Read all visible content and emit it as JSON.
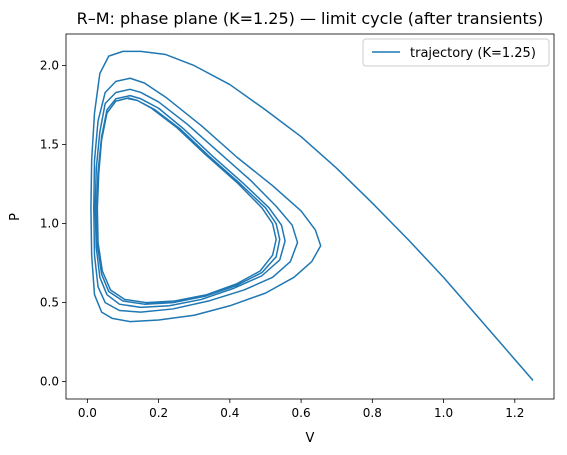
{
  "chart_data": {
    "type": "line",
    "title": "R–M: phase plane (K=1.25) — limit cycle (after transients)",
    "xlabel": "V",
    "ylabel": "P",
    "xlim": [
      -0.06,
      1.31
    ],
    "ylim": [
      -0.11,
      2.2
    ],
    "xticks": [
      0.0,
      0.2,
      0.4,
      0.6,
      0.8,
      1.0,
      1.2
    ],
    "xtick_labels": [
      "0.0",
      "0.2",
      "0.4",
      "0.6",
      "0.8",
      "1.0",
      "1.2"
    ],
    "yticks": [
      0.0,
      0.5,
      1.0,
      1.5,
      2.0
    ],
    "ytick_labels": [
      "0.0",
      "0.5",
      "1.0",
      "1.5",
      "2.0"
    ],
    "grid": false,
    "legend": {
      "position": "top-right",
      "entries": [
        "trajectory (K=1.25)"
      ]
    },
    "series": [
      {
        "name": "trajectory (K=1.25)",
        "color": "#1f77b4",
        "points": [
          [
            1.25,
            0.01
          ],
          [
            1.2,
            0.14
          ],
          [
            1.1,
            0.4
          ],
          [
            1.0,
            0.66
          ],
          [
            0.9,
            0.9
          ],
          [
            0.8,
            1.13
          ],
          [
            0.7,
            1.35
          ],
          [
            0.6,
            1.55
          ],
          [
            0.5,
            1.72
          ],
          [
            0.4,
            1.88
          ],
          [
            0.3,
            2.0
          ],
          [
            0.22,
            2.07
          ],
          [
            0.15,
            2.09
          ],
          [
            0.1,
            2.09
          ],
          [
            0.06,
            2.06
          ],
          [
            0.035,
            1.95
          ],
          [
            0.02,
            1.7
          ],
          [
            0.012,
            1.4
          ],
          [
            0.01,
            1.1
          ],
          [
            0.012,
            0.8
          ],
          [
            0.02,
            0.55
          ],
          [
            0.04,
            0.44
          ],
          [
            0.07,
            0.4
          ],
          [
            0.12,
            0.38
          ],
          [
            0.2,
            0.39
          ],
          [
            0.3,
            0.42
          ],
          [
            0.4,
            0.48
          ],
          [
            0.5,
            0.56
          ],
          [
            0.58,
            0.66
          ],
          [
            0.63,
            0.76
          ],
          [
            0.655,
            0.86
          ],
          [
            0.64,
            0.96
          ],
          [
            0.6,
            1.08
          ],
          [
            0.52,
            1.24
          ],
          [
            0.42,
            1.42
          ],
          [
            0.32,
            1.62
          ],
          [
            0.22,
            1.8
          ],
          [
            0.16,
            1.89
          ],
          [
            0.12,
            1.92
          ],
          [
            0.08,
            1.9
          ],
          [
            0.05,
            1.83
          ],
          [
            0.03,
            1.65
          ],
          [
            0.02,
            1.4
          ],
          [
            0.018,
            1.1
          ],
          [
            0.02,
            0.8
          ],
          [
            0.03,
            0.6
          ],
          [
            0.05,
            0.5
          ],
          [
            0.09,
            0.45
          ],
          [
            0.15,
            0.44
          ],
          [
            0.24,
            0.46
          ],
          [
            0.34,
            0.51
          ],
          [
            0.44,
            0.58
          ],
          [
            0.52,
            0.66
          ],
          [
            0.57,
            0.76
          ],
          [
            0.59,
            0.88
          ],
          [
            0.575,
            0.99
          ],
          [
            0.53,
            1.11
          ],
          [
            0.46,
            1.27
          ],
          [
            0.37,
            1.45
          ],
          [
            0.28,
            1.63
          ],
          [
            0.2,
            1.77
          ],
          [
            0.15,
            1.83
          ],
          [
            0.12,
            1.85
          ],
          [
            0.08,
            1.83
          ],
          [
            0.05,
            1.76
          ],
          [
            0.035,
            1.58
          ],
          [
            0.025,
            1.35
          ],
          [
            0.022,
            1.1
          ],
          [
            0.025,
            0.85
          ],
          [
            0.035,
            0.66
          ],
          [
            0.055,
            0.55
          ],
          [
            0.09,
            0.49
          ],
          [
            0.15,
            0.47
          ],
          [
            0.23,
            0.48
          ],
          [
            0.32,
            0.52
          ],
          [
            0.41,
            0.59
          ],
          [
            0.49,
            0.67
          ],
          [
            0.54,
            0.77
          ],
          [
            0.555,
            0.89
          ],
          [
            0.545,
            0.99
          ],
          [
            0.51,
            1.1
          ],
          [
            0.44,
            1.25
          ],
          [
            0.35,
            1.43
          ],
          [
            0.27,
            1.6
          ],
          [
            0.2,
            1.73
          ],
          [
            0.15,
            1.79
          ],
          [
            0.12,
            1.81
          ],
          [
            0.08,
            1.79
          ],
          [
            0.055,
            1.72
          ],
          [
            0.04,
            1.55
          ],
          [
            0.03,
            1.33
          ],
          [
            0.026,
            1.1
          ],
          [
            0.028,
            0.87
          ],
          [
            0.04,
            0.68
          ],
          [
            0.06,
            0.57
          ],
          [
            0.1,
            0.51
          ],
          [
            0.16,
            0.49
          ],
          [
            0.24,
            0.5
          ],
          [
            0.33,
            0.54
          ],
          [
            0.42,
            0.61
          ],
          [
            0.49,
            0.69
          ],
          [
            0.53,
            0.79
          ],
          [
            0.54,
            0.9
          ],
          [
            0.53,
            1.0
          ],
          [
            0.5,
            1.1
          ],
          [
            0.43,
            1.25
          ],
          [
            0.34,
            1.43
          ],
          [
            0.26,
            1.6
          ],
          [
            0.19,
            1.72
          ],
          [
            0.14,
            1.78
          ],
          [
            0.115,
            1.795
          ],
          [
            0.08,
            1.775
          ],
          [
            0.055,
            1.7
          ],
          [
            0.04,
            1.53
          ],
          [
            0.032,
            1.32
          ],
          [
            0.028,
            1.1
          ],
          [
            0.03,
            0.88
          ],
          [
            0.042,
            0.7
          ],
          [
            0.065,
            0.58
          ],
          [
            0.105,
            0.52
          ],
          [
            0.165,
            0.5
          ],
          [
            0.245,
            0.51
          ],
          [
            0.335,
            0.55
          ],
          [
            0.42,
            0.62
          ],
          [
            0.485,
            0.7
          ],
          [
            0.52,
            0.8
          ],
          [
            0.53,
            0.9
          ],
          [
            0.52,
            1.0
          ],
          [
            0.49,
            1.1
          ],
          [
            0.42,
            1.26
          ],
          [
            0.33,
            1.44
          ],
          [
            0.25,
            1.61
          ],
          [
            0.18,
            1.73
          ],
          [
            0.14,
            1.78
          ],
          [
            0.115,
            1.79
          ]
        ]
      }
    ]
  }
}
